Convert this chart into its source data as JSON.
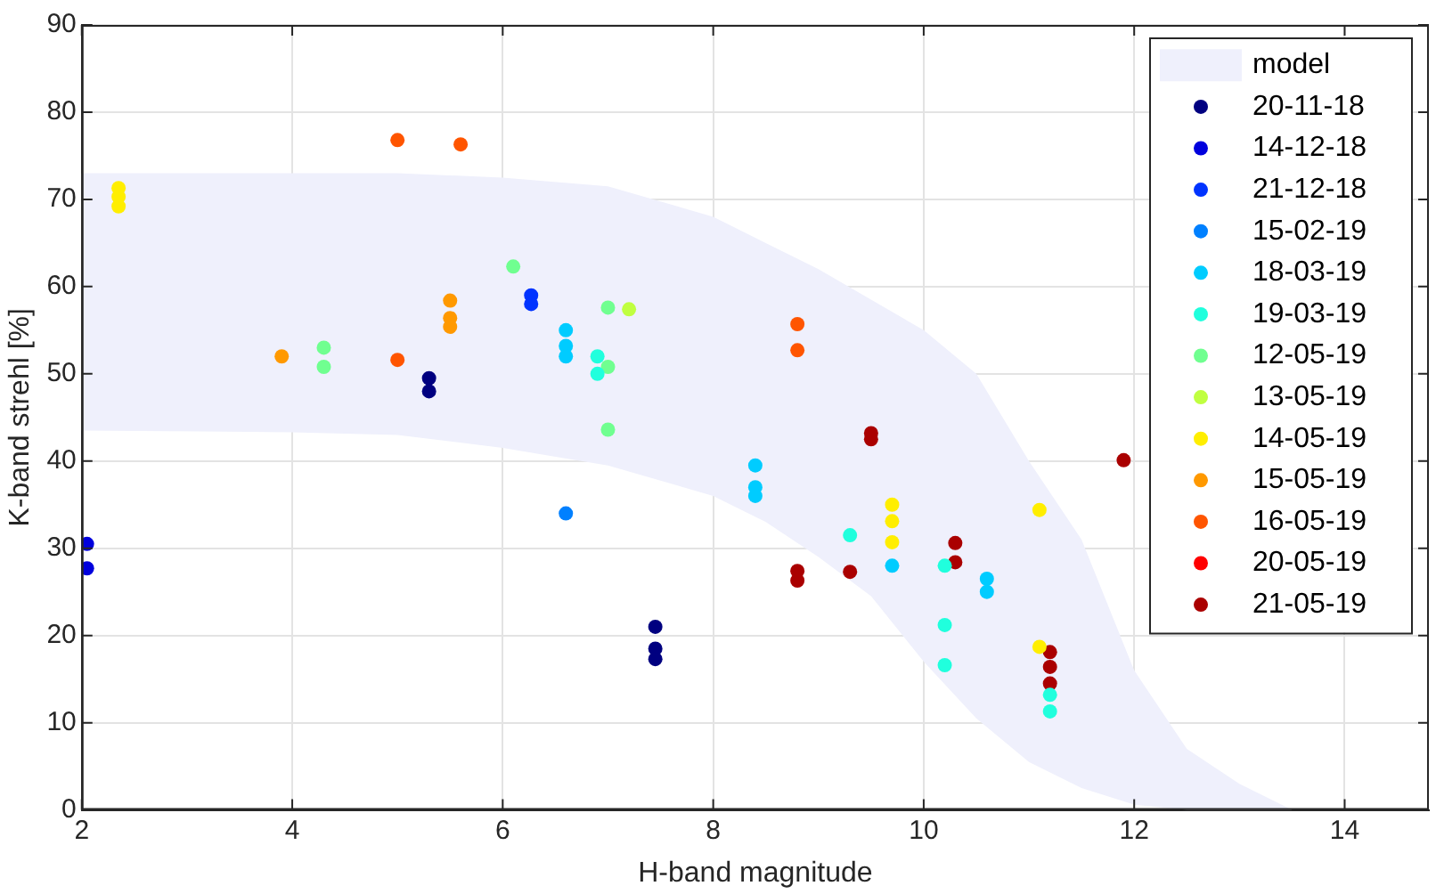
{
  "chart_data": {
    "type": "scatter",
    "xlabel": "H-band magnitude",
    "ylabel": "K-band strehl [%]",
    "xlim": [
      2,
      14.8
    ],
    "xticks": [
      2,
      4,
      6,
      8,
      10,
      12,
      14
    ],
    "ylim": [
      0,
      90
    ],
    "yticks": [
      0,
      10,
      20,
      30,
      40,
      50,
      60,
      70,
      80,
      90
    ],
    "grid": true,
    "legend": "top right",
    "marker": "circle",
    "series": [
      {
        "name": "model",
        "type": "area",
        "color": "#eff0fc",
        "x": [
          2,
          4,
          5,
          6,
          7,
          8,
          8.5,
          9,
          9.5,
          10,
          10.5,
          11,
          11.5,
          12,
          12.5,
          13,
          13.5
        ],
        "values": [
          null,
          null,
          null,
          null,
          null,
          null,
          null,
          null,
          null,
          null,
          null,
          null,
          null,
          null,
          null,
          null,
          null
        ],
        "upper": [
          73,
          73,
          73,
          72.5,
          71.5,
          68,
          65,
          62,
          58.5,
          55,
          50,
          40,
          31,
          16,
          7,
          3,
          0
        ],
        "lower": [
          43.5,
          43.3,
          43,
          41.5,
          39.5,
          36,
          33,
          29,
          24.5,
          17,
          10.5,
          5.5,
          2.5,
          0.6,
          0,
          0,
          0
        ]
      },
      {
        "name": "20-11-18",
        "color": "#000080",
        "x": [
          5.3,
          5.3,
          7.45,
          7.45,
          7.45
        ],
        "values": [
          49.5,
          48,
          21,
          18.5,
          17.3
        ]
      },
      {
        "name": "14-12-18",
        "color": "#0000dd",
        "x": [
          2.05,
          2.05
        ],
        "values": [
          30.5,
          27.7
        ]
      },
      {
        "name": "21-12-18",
        "color": "#0033ff",
        "x": [
          6.27,
          6.27
        ],
        "values": [
          59,
          58
        ]
      },
      {
        "name": "15-02-19",
        "color": "#0080ff",
        "x": [
          6.6
        ],
        "values": [
          34
        ]
      },
      {
        "name": "18-03-19",
        "color": "#00ccff",
        "x": [
          6.6,
          6.6,
          6.6,
          8.4,
          8.4,
          8.4,
          9.7,
          10.6,
          10.6
        ],
        "values": [
          55,
          53.2,
          52,
          39.5,
          37,
          36,
          28,
          26.5,
          25
        ]
      },
      {
        "name": "19-03-19",
        "color": "#20ffdd",
        "x": [
          6.9,
          6.9,
          9.3,
          10.2,
          10.2,
          10.2,
          11.2,
          11.2
        ],
        "values": [
          52,
          50,
          31.5,
          28,
          21.2,
          16.6,
          13.2,
          11.3
        ]
      },
      {
        "name": "12-05-19",
        "color": "#70ff90",
        "x": [
          4.3,
          4.3,
          6.1,
          7,
          7,
          7
        ],
        "values": [
          53,
          50.8,
          62.3,
          57.6,
          50.8,
          43.6
        ]
      },
      {
        "name": "13-05-19",
        "color": "#c0ff40",
        "x": [
          7.2
        ],
        "values": [
          57.4
        ]
      },
      {
        "name": "14-05-19",
        "color": "#ffee00",
        "x": [
          2.35,
          2.35,
          2.35,
          9.7,
          9.7,
          9.7,
          11.1,
          11.1
        ],
        "values": [
          71.3,
          70.3,
          69.2,
          35,
          33.1,
          30.7,
          34.4,
          18.7
        ]
      },
      {
        "name": "15-05-19",
        "color": "#ff9900",
        "x": [
          3.9,
          5.5,
          5.5,
          5.5
        ],
        "values": [
          52,
          58.4,
          56.4,
          55.4
        ]
      },
      {
        "name": "16-05-19",
        "color": "#ff5500",
        "x": [
          5,
          5.6,
          5,
          8.8,
          8.8
        ],
        "values": [
          76.8,
          76.3,
          51.6,
          55.7,
          52.7
        ]
      },
      {
        "name": "20-05-19",
        "color": "#ff0000"
      },
      {
        "name": "21-05-19",
        "color": "#aa0000",
        "x": [
          9.5,
          9.5,
          8.8,
          8.8,
          9.3,
          10.3,
          10.3,
          11.9,
          11.2,
          11.2,
          11.2
        ],
        "values": [
          43.2,
          42.5,
          27.4,
          26.3,
          27.3,
          30.6,
          28.4,
          40.1,
          18.1,
          16.4,
          14.5
        ]
      }
    ]
  }
}
